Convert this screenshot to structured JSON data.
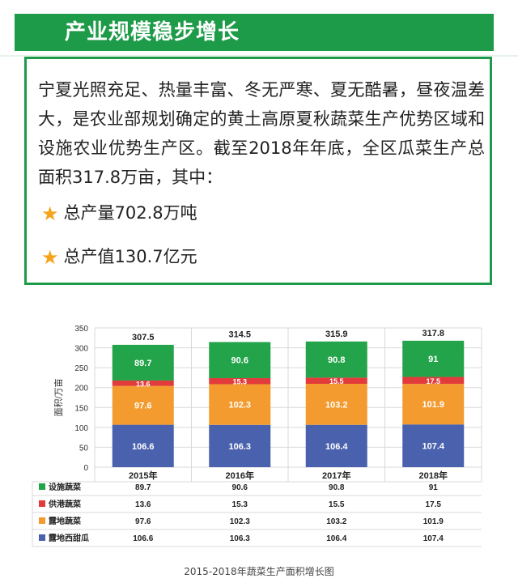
{
  "header": {
    "title": "产业规模稳步增长"
  },
  "intro": {
    "paragraph": "宁夏光照充足、热量丰富、冬无严寒、夏无酷暑，昼夜温差大，是农业部规划确定的黄土高原夏秋蔬菜生产优势区域和设施农业优势生产区。截至2018年年底，全区瓜菜生产总面积317.8万亩，其中：",
    "stats": [
      {
        "icon": "star-icon",
        "text": "总产量702.8万吨"
      },
      {
        "icon": "star-icon",
        "text": "总产值130.7亿元"
      }
    ]
  },
  "caption": "2015-2018年蔬菜生产面积增长图",
  "colors": {
    "accent": "#1d9b48",
    "star": "#f5a31a"
  },
  "chart_data": {
    "type": "bar",
    "stacked": true,
    "ylabel": "面积/万亩",
    "ylim": [
      0,
      350
    ],
    "yticks": [
      0,
      50,
      100,
      150,
      200,
      250,
      300,
      350
    ],
    "grid": true,
    "categories": [
      "2015年",
      "2016年",
      "2017年",
      "2018年"
    ],
    "totals": [
      "307.5",
      "314.5",
      "315.9",
      "317.8"
    ],
    "series": [
      {
        "name": "露地西甜瓜",
        "color": "#4a62ad",
        "values": [
          106.6,
          106.3,
          106.4,
          107.4
        ],
        "labels": [
          "106.6",
          "106.3",
          "106.4",
          "107.4"
        ]
      },
      {
        "name": "露地蔬菜",
        "color": "#f39b2f",
        "values": [
          97.6,
          102.3,
          103.2,
          101.9
        ],
        "labels": [
          "97.6",
          "102.3",
          "103.2",
          "101.9"
        ]
      },
      {
        "name": "供港蔬菜",
        "color": "#e23b3b",
        "values": [
          13.6,
          15.3,
          15.5,
          17.5
        ],
        "labels": [
          "13.6",
          "15.3",
          "15.5",
          "17.5"
        ]
      },
      {
        "name": "设施蔬菜",
        "color": "#23a44a",
        "values": [
          89.7,
          90.6,
          90.8,
          91
        ],
        "labels": [
          "89.7",
          "90.6",
          "90.8",
          "91"
        ]
      }
    ]
  }
}
